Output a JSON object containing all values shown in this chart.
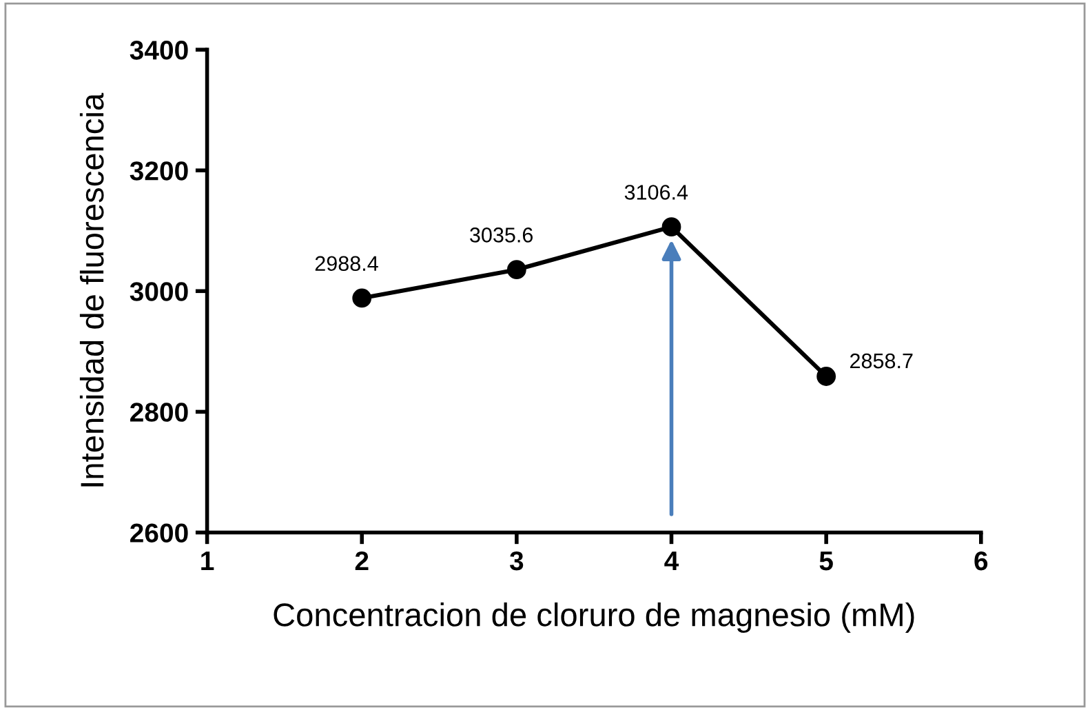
{
  "chart_data": {
    "type": "line",
    "xlabel": "Concentracion de cloruro de magnesio (mM)",
    "ylabel": "Intensidad de fluorescencia",
    "x": [
      2,
      3,
      4,
      5
    ],
    "series": [
      {
        "color": "#000000",
        "values": [
          2988.4,
          3035.6,
          3106.4,
          2858.7
        ]
      }
    ],
    "data_labels": true,
    "marker": "circle",
    "line_style": "solid",
    "xlim": [
      1,
      6
    ],
    "xticks": [
      1,
      2,
      3,
      4,
      5,
      6
    ],
    "ylim": [
      2600,
      3400
    ],
    "yticks": [
      2600,
      2800,
      3000,
      3200,
      3400
    ],
    "grid": false,
    "legend": false
  }
}
